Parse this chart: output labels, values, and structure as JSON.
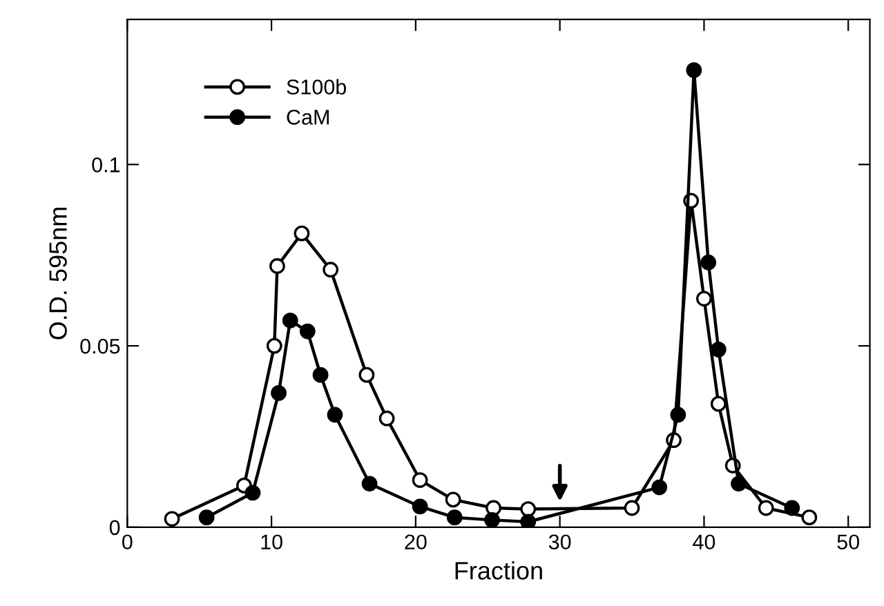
{
  "chart_data": {
    "type": "line",
    "xlabel": "Fraction",
    "ylabel": "O.D. 595nm",
    "xlim": [
      0,
      51.5
    ],
    "ylim": [
      0,
      0.14
    ],
    "xticks": [
      0,
      10,
      20,
      30,
      40,
      50
    ],
    "yticks": [
      0,
      0.05,
      0.1
    ],
    "marker": "circle",
    "line_style": "solid",
    "legend": "top left",
    "grid": false,
    "series": [
      {
        "name": "S100b",
        "color": "#000000",
        "x": [
          3.1,
          8.1,
          10.2,
          10.4,
          12.1,
          14.1,
          16.6,
          18.0,
          20.3,
          22.6,
          25.4,
          27.8,
          35.0,
          37.9,
          39.1,
          40.0,
          41.0,
          42.0,
          44.3,
          47.3
        ],
        "values": [
          0.0023,
          0.0115,
          0.05,
          0.072,
          0.081,
          0.071,
          0.042,
          0.03,
          0.013,
          0.0076,
          0.0053,
          0.005,
          0.0053,
          0.024,
          0.09,
          0.063,
          0.034,
          0.017,
          0.0053,
          0.0027
        ]
      },
      {
        "name": "CaM",
        "color": "#000000",
        "x": [
          5.5,
          8.7,
          10.5,
          11.3,
          12.5,
          13.4,
          14.4,
          16.8,
          20.3,
          22.7,
          25.3,
          27.8,
          36.9,
          38.2,
          39.3,
          40.3,
          41.0,
          42.4,
          46.1
        ],
        "values": [
          0.0027,
          0.0095,
          0.037,
          0.057,
          0.054,
          0.042,
          0.031,
          0.012,
          0.0057,
          0.0027,
          0.002,
          0.0015,
          0.011,
          0.031,
          0.126,
          0.073,
          0.049,
          0.012,
          0.0053
        ]
      }
    ]
  }
}
